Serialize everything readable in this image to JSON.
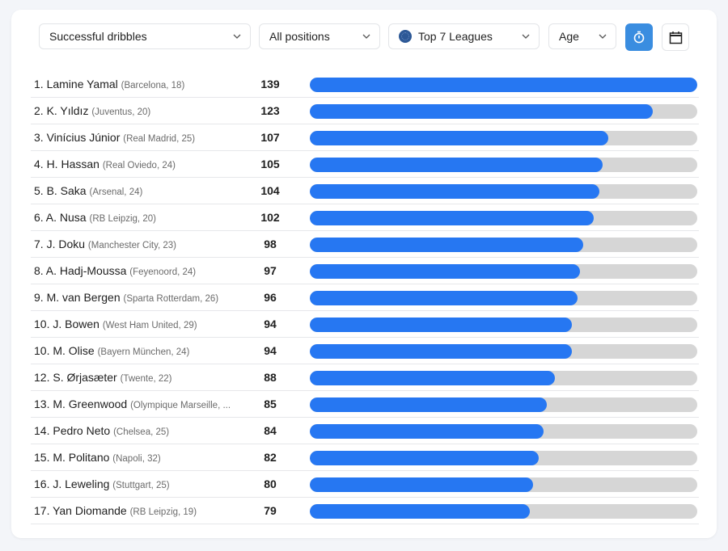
{
  "filters": {
    "metric": "Successful dribbles",
    "position": "All positions",
    "competition": "Top 7 Leagues",
    "sort": "Age"
  },
  "toolbar_icons": {
    "per90": "stopwatch-icon",
    "season": "calendar-icon"
  },
  "colors": {
    "bar_fill": "#2677f2",
    "bar_track": "#d6d6d6",
    "active_button": "#3a8de0"
  },
  "chart_data": {
    "type": "bar",
    "orientation": "horizontal",
    "title": "Successful dribbles",
    "max": 139,
    "rows": [
      {
        "rank": "1.",
        "name": "Lamine Yamal",
        "club": "(Barcelona, 18)",
        "value": 139
      },
      {
        "rank": "2.",
        "name": "K. Yıldız",
        "club": "(Juventus, 20)",
        "value": 123
      },
      {
        "rank": "3.",
        "name": "Vinícius Júnior",
        "club": "(Real Madrid, 25)",
        "value": 107
      },
      {
        "rank": "4.",
        "name": "H. Hassan",
        "club": "(Real Oviedo, 24)",
        "value": 105
      },
      {
        "rank": "5.",
        "name": "B. Saka",
        "club": "(Arsenal, 24)",
        "value": 104
      },
      {
        "rank": "6.",
        "name": "A. Nusa",
        "club": "(RB Leipzig, 20)",
        "value": 102
      },
      {
        "rank": "7.",
        "name": "J. Doku",
        "club": "(Manchester City, 23)",
        "value": 98
      },
      {
        "rank": "8.",
        "name": "A. Hadj-Moussa",
        "club": "(Feyenoord, 24)",
        "value": 97
      },
      {
        "rank": "9.",
        "name": "M. van Bergen",
        "club": "(Sparta Rotterdam, 26)",
        "value": 96
      },
      {
        "rank": "10.",
        "name": "J. Bowen",
        "club": "(West Ham United, 29)",
        "value": 94
      },
      {
        "rank": "10.",
        "name": "M. Olise",
        "club": "(Bayern München, 24)",
        "value": 94
      },
      {
        "rank": "12.",
        "name": "S. Ørjasæter",
        "club": "(Twente, 22)",
        "value": 88
      },
      {
        "rank": "13.",
        "name": "M. Greenwood",
        "club": "(Olympique Marseille, ...",
        "value": 85
      },
      {
        "rank": "14.",
        "name": "Pedro Neto",
        "club": "(Chelsea, 25)",
        "value": 84
      },
      {
        "rank": "15.",
        "name": "M. Politano",
        "club": "(Napoli, 32)",
        "value": 82
      },
      {
        "rank": "16.",
        "name": "J. Leweling",
        "club": "(Stuttgart, 25)",
        "value": 80
      },
      {
        "rank": "17.",
        "name": "Yan Diomande",
        "club": "(RB Leipzig, 19)",
        "value": 79
      }
    ]
  }
}
